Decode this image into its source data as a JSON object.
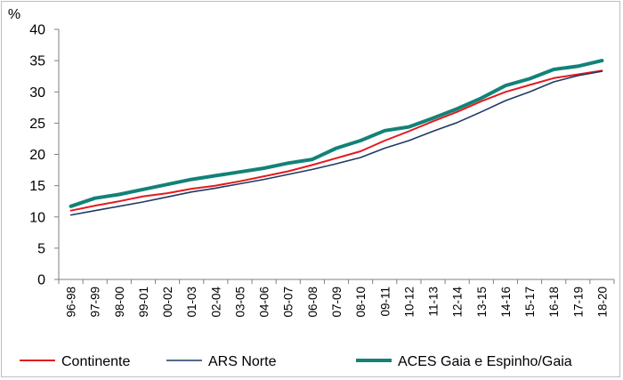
{
  "chart_data": {
    "type": "line",
    "title": "",
    "xlabel": "",
    "ylabel": "%",
    "ylim": [
      0,
      40
    ],
    "yticks": [
      0,
      5,
      10,
      15,
      20,
      25,
      30,
      35,
      40
    ],
    "grid": false,
    "legend_position": "bottom",
    "categories": [
      "96-98",
      "97-99",
      "98-00",
      "99-01",
      "00-02",
      "01-03",
      "02-04",
      "03-05",
      "04-06",
      "05-07",
      "06-08",
      "07-09",
      "08-10",
      "09-11",
      "10-12",
      "11-13",
      "12-14",
      "13-15",
      "14-16",
      "15-17",
      "16-18",
      "17-19",
      "18-20"
    ],
    "series": [
      {
        "name": "Continente",
        "color": "#e31a1c",
        "width": 2,
        "values": [
          11.0,
          11.8,
          12.5,
          13.3,
          13.8,
          14.5,
          15.0,
          15.7,
          16.5,
          17.3,
          18.3,
          19.4,
          20.5,
          22.2,
          23.7,
          25.3,
          26.8,
          28.5,
          30.0,
          31.1,
          32.2,
          32.8,
          33.4
        ]
      },
      {
        "name": "ARS Norte",
        "color": "#1f3864",
        "width": 1.6,
        "values": [
          10.3,
          11.0,
          11.7,
          12.4,
          13.2,
          14.0,
          14.6,
          15.3,
          16.0,
          16.8,
          17.6,
          18.5,
          19.5,
          21.0,
          22.2,
          23.7,
          25.1,
          26.8,
          28.6,
          30.0,
          31.6,
          32.6,
          33.3
        ]
      },
      {
        "name": "ACES Gaia e Espinho/Gaia",
        "color": "#128277",
        "width": 4,
        "values": [
          11.7,
          13.0,
          13.6,
          14.4,
          15.2,
          16.0,
          16.6,
          17.2,
          17.8,
          18.6,
          19.2,
          21.0,
          22.2,
          23.8,
          24.4,
          25.8,
          27.3,
          29.0,
          31.0,
          32.1,
          33.6,
          34.1,
          35.0
        ]
      }
    ]
  }
}
